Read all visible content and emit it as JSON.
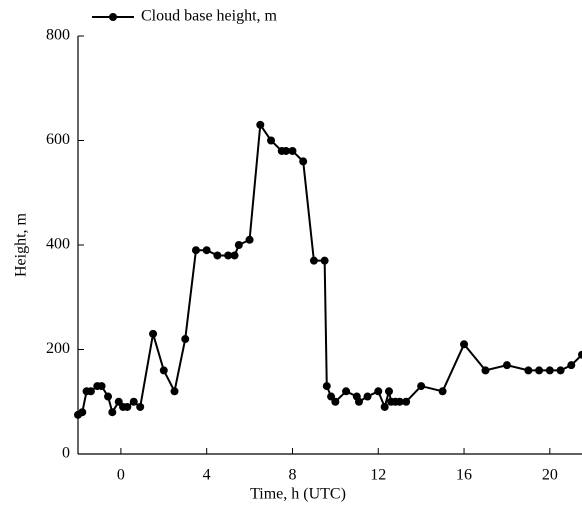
{
  "chart_data": {
    "type": "line",
    "xlabel": "Time, h (UTC)",
    "ylabel": "Height, m",
    "x": [
      -2,
      -1.8,
      -1.6,
      -1.4,
      -1.1,
      -0.9,
      -0.6,
      -0.4,
      -0.1,
      0.1,
      0.3,
      0.6,
      0.9,
      1.5,
      2,
      2.5,
      3,
      3.5,
      4,
      4.5,
      5,
      5.3,
      5.5,
      6,
      6.5,
      7,
      7.5,
      7.7,
      8,
      8.5,
      9,
      9.5,
      9.6,
      9.8,
      10,
      10.5,
      11,
      11.1,
      11.5,
      12,
      12.3,
      12.5,
      12.6,
      12.8,
      13,
      13.3,
      14,
      15,
      16,
      17,
      18,
      19,
      19.5,
      20,
      20.5,
      21,
      21.5
    ],
    "series": [
      {
        "name": "Cloud base height, m",
        "color": "#000000",
        "values": [
          75,
          80,
          120,
          120,
          130,
          130,
          110,
          80,
          100,
          90,
          90,
          100,
          90,
          230,
          160,
          120,
          220,
          390,
          390,
          380,
          380,
          380,
          400,
          410,
          630,
          600,
          580,
          580,
          580,
          560,
          370,
          370,
          130,
          110,
          100,
          120,
          110,
          100,
          110,
          120,
          90,
          120,
          100,
          100,
          100,
          100,
          130,
          120,
          210,
          160,
          170,
          160,
          160,
          160,
          160,
          170,
          190
        ]
      }
    ],
    "xlim": [
      -2,
      21.5
    ],
    "xticks": [
      0,
      4,
      8,
      12,
      16,
      20
    ],
    "ylim": [
      0,
      800
    ],
    "yticks": [
      0,
      200,
      400,
      600,
      800
    ],
    "legend": "top-left"
  }
}
